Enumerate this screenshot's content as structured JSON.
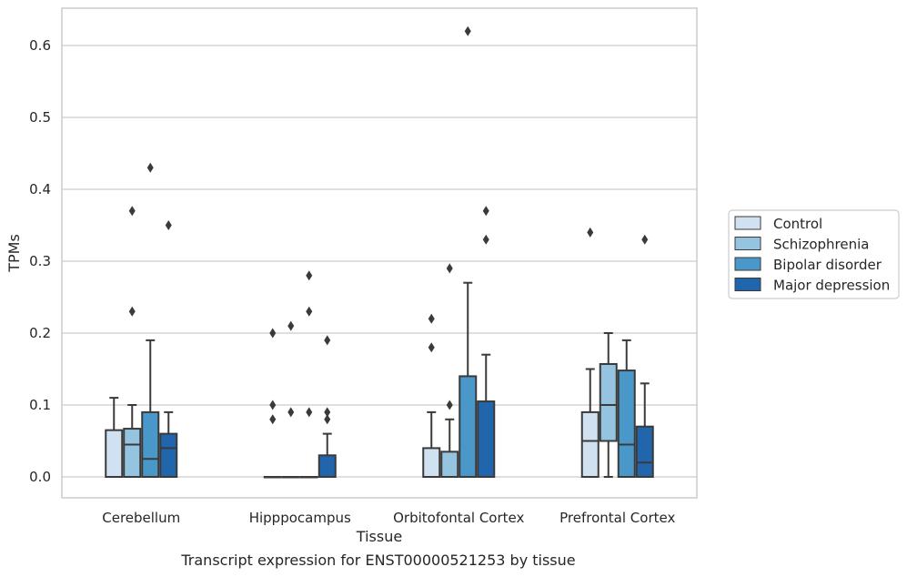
{
  "caption": "Transcript expression for ENST00000521253 by tissue",
  "chart_data": {
    "type": "box",
    "xlabel": "Tissue",
    "ylabel": "TPMs",
    "ylim": [
      -0.03,
      0.655
    ],
    "yticks": [
      "0.0",
      "0.1",
      "0.2",
      "0.3",
      "0.4",
      "0.5",
      "0.6"
    ],
    "grid": true,
    "legend_position": "right",
    "categories": [
      "Cerebellum",
      "Hipppocampus",
      "Orbitofontal Cortex",
      "Prefrontal Cortex"
    ],
    "series": [
      {
        "name": "Control",
        "color": "#d0e1f2",
        "boxes": [
          {
            "whislo": 0.0,
            "q1": 0.0,
            "med": 0.0,
            "q3": 0.065,
            "whishi": 0.11,
            "fliers": []
          },
          {
            "whislo": 0.0,
            "q1": 0.0,
            "med": 0.0,
            "q3": 0.0,
            "whishi": 0.0,
            "fliers": [
              0.08,
              0.1,
              0.2
            ]
          },
          {
            "whislo": 0.0,
            "q1": 0.0,
            "med": 0.0,
            "q3": 0.04,
            "whishi": 0.09,
            "fliers": [
              0.18,
              0.22
            ]
          },
          {
            "whislo": 0.0,
            "q1": 0.0,
            "med": 0.05,
            "q3": 0.09,
            "whishi": 0.15,
            "fliers": [
              0.34
            ]
          }
        ]
      },
      {
        "name": "Schizophrenia",
        "color": "#94c4df",
        "boxes": [
          {
            "whislo": 0.0,
            "q1": 0.0,
            "med": 0.045,
            "q3": 0.067,
            "whishi": 0.1,
            "fliers": [
              0.23,
              0.37
            ]
          },
          {
            "whislo": 0.0,
            "q1": 0.0,
            "med": 0.0,
            "q3": 0.0,
            "whishi": 0.0,
            "fliers": [
              0.09,
              0.21
            ]
          },
          {
            "whislo": 0.0,
            "q1": 0.0,
            "med": 0.0,
            "q3": 0.035,
            "whishi": 0.08,
            "fliers": [
              0.1,
              0.29
            ]
          },
          {
            "whislo": 0.0,
            "q1": 0.05,
            "med": 0.1,
            "q3": 0.157,
            "whishi": 0.2,
            "fliers": []
          }
        ]
      },
      {
        "name": "Bipolar disorder",
        "color": "#4a98c9",
        "boxes": [
          {
            "whislo": 0.0,
            "q1": 0.0,
            "med": 0.025,
            "q3": 0.09,
            "whishi": 0.19,
            "fliers": [
              0.43
            ]
          },
          {
            "whislo": 0.0,
            "q1": 0.0,
            "med": 0.0,
            "q3": 0.0,
            "whishi": 0.0,
            "fliers": [
              0.09,
              0.23,
              0.28
            ]
          },
          {
            "whislo": 0.0,
            "q1": 0.0,
            "med": 0.0,
            "q3": 0.14,
            "whishi": 0.27,
            "fliers": [
              0.62
            ]
          },
          {
            "whislo": 0.0,
            "q1": 0.0,
            "med": 0.045,
            "q3": 0.148,
            "whishi": 0.19,
            "fliers": []
          }
        ]
      },
      {
        "name": "Major depression",
        "color": "#2166ac",
        "boxes": [
          {
            "whislo": 0.0,
            "q1": 0.0,
            "med": 0.04,
            "q3": 0.06,
            "whishi": 0.09,
            "fliers": [
              0.35
            ]
          },
          {
            "whislo": 0.0,
            "q1": 0.0,
            "med": 0.0,
            "q3": 0.03,
            "whishi": 0.06,
            "fliers": [
              0.08,
              0.09,
              0.19
            ]
          },
          {
            "whislo": 0.0,
            "q1": 0.0,
            "med": 0.0,
            "q3": 0.105,
            "whishi": 0.17,
            "fliers": [
              0.33,
              0.37
            ]
          },
          {
            "whislo": 0.0,
            "q1": 0.0,
            "med": 0.02,
            "q3": 0.07,
            "whishi": 0.13,
            "fliers": [
              0.33
            ]
          }
        ]
      }
    ]
  }
}
